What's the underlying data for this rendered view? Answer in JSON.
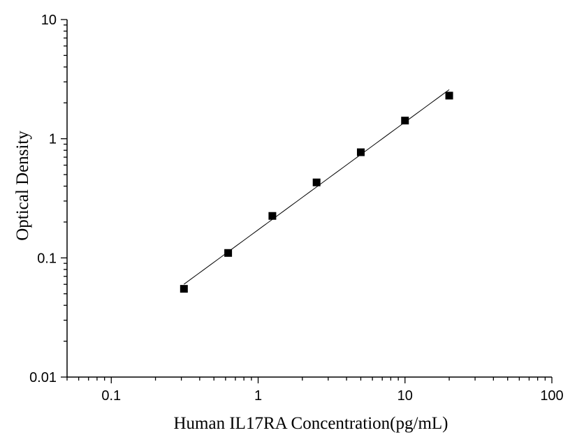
{
  "chart_data": {
    "type": "scatter",
    "title": "",
    "xlabel": "Human IL17RA Concentration(pg/mL)",
    "ylabel": "Optical Density",
    "x_scale": "log",
    "y_scale": "log",
    "xlim": [
      0.05,
      100
    ],
    "ylim": [
      0.01,
      10
    ],
    "x_ticks": [
      0.1,
      1,
      10,
      100
    ],
    "x_tick_labels": [
      "0.1",
      "1",
      "10",
      "100"
    ],
    "y_ticks": [
      0.01,
      0.1,
      1,
      10
    ],
    "y_tick_labels": [
      "0.01",
      "0.1",
      "1",
      "10"
    ],
    "grid": false,
    "series": [
      {
        "marker": "square",
        "line": "fit",
        "color": "#000000",
        "x": [
          0.3125,
          0.625,
          1.25,
          2.5,
          5,
          10,
          20
        ],
        "y": [
          0.055,
          0.11,
          0.225,
          0.43,
          0.77,
          1.42,
          2.3
        ]
      }
    ]
  }
}
